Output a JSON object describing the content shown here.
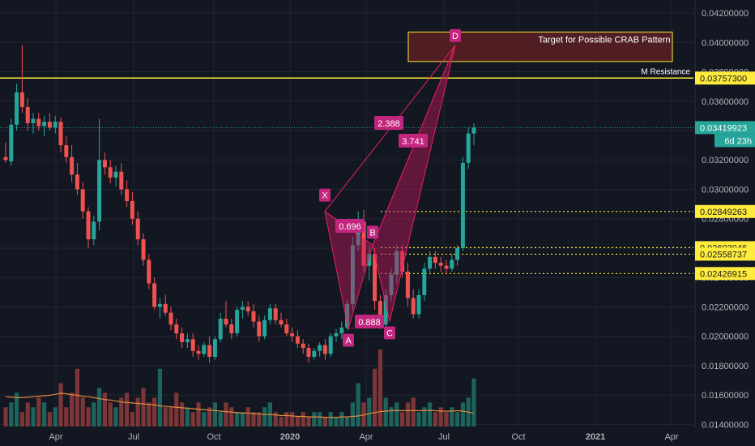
{
  "colors": {
    "background": "#131722",
    "grid": "#222631",
    "axis_text": "#b2b5be",
    "up": "#26a69a",
    "down": "#ef5350",
    "vol_up": "#1f6b63",
    "vol_down": "#8a3a3a",
    "ma": "#e08a3c",
    "resistance": "#ffeb3b",
    "pattern_fill": "#c2185b",
    "pattern_line": "#e91e63",
    "pattern_label": "#c2257d",
    "target_box": "#5a1f22",
    "current_price": "#26a69a"
  },
  "chart_data": {
    "type": "candlestick",
    "y_range": [
      0.0138,
      0.0425
    ],
    "y_ticks": [
      "0.04200000",
      "0.04000000",
      "0.03800000",
      "0.03600000",
      "0.03400000",
      "0.03200000",
      "0.03000000",
      "0.02800000",
      "0.02600000",
      "0.02400000",
      "0.02200000",
      "0.02000000",
      "0.01800000",
      "0.01600000",
      "0.01400000"
    ],
    "x_ticks": [
      "Apr",
      "Jul",
      "Oct",
      "2020",
      "Apr",
      "Jul",
      "Oct",
      "2021",
      "Apr"
    ],
    "price_labels": [
      {
        "text": "0.03757300",
        "value": 0.037573,
        "style": "yellow"
      },
      {
        "text": "0.03419923",
        "value": 0.03419923,
        "style": "current"
      },
      {
        "text": "0.02849263",
        "value": 0.02849263,
        "style": "yellow"
      },
      {
        "text": "0.02603046",
        "value": 0.02603046,
        "style": "yellow"
      },
      {
        "text": "0.02558737",
        "value": 0.02558737,
        "style": "yellow"
      },
      {
        "text": "0.02426915",
        "value": 0.02426915,
        "style": "yellow"
      }
    ],
    "countdown": "6d 23h",
    "resistance_label": "M Resistance",
    "target_label": "Target for Possible CRAB Pattern",
    "target_zone": [
      0.0387,
      0.0407
    ],
    "pattern_points": [
      {
        "label": "X",
        "value": 0.0285
      },
      {
        "label": "A",
        "value": 0.0205
      },
      {
        "label": "B",
        "value": 0.0262
      },
      {
        "label": "C",
        "value": 0.021
      },
      {
        "label": "D",
        "value": 0.0398
      }
    ],
    "ratios": [
      "0.696",
      "0.888",
      "2.388",
      "3.741"
    ],
    "candles": [
      [
        0.0322,
        0.0332,
        0.0318,
        0.032
      ],
      [
        0.0319,
        0.0348,
        0.0316,
        0.0344
      ],
      [
        0.0344,
        0.0372,
        0.034,
        0.0366
      ],
      [
        0.0366,
        0.0398,
        0.0352,
        0.0356
      ],
      [
        0.0356,
        0.0362,
        0.034,
        0.0345
      ],
      [
        0.0345,
        0.0352,
        0.0338,
        0.0348
      ],
      [
        0.0348,
        0.0352,
        0.034,
        0.0343
      ],
      [
        0.0343,
        0.035,
        0.0336,
        0.0346
      ],
      [
        0.0346,
        0.0352,
        0.034,
        0.0342
      ],
      [
        0.0342,
        0.035,
        0.0338,
        0.0346
      ],
      [
        0.0346,
        0.0349,
        0.0325,
        0.033
      ],
      [
        0.033,
        0.0336,
        0.0318,
        0.0322
      ],
      [
        0.0322,
        0.033,
        0.0305,
        0.031
      ],
      [
        0.031,
        0.0318,
        0.0296,
        0.03
      ],
      [
        0.03,
        0.0305,
        0.028,
        0.0285
      ],
      [
        0.0285,
        0.0288,
        0.026,
        0.0266
      ],
      [
        0.0266,
        0.0282,
        0.0262,
        0.0278
      ],
      [
        0.0278,
        0.0348,
        0.0272,
        0.032
      ],
      [
        0.032,
        0.0325,
        0.031,
        0.0315
      ],
      [
        0.0315,
        0.032,
        0.0304,
        0.0308
      ],
      [
        0.0308,
        0.0316,
        0.0302,
        0.0312
      ],
      [
        0.0312,
        0.0318,
        0.0296,
        0.03
      ],
      [
        0.03,
        0.0306,
        0.0288,
        0.0292
      ],
      [
        0.0292,
        0.0298,
        0.0276,
        0.028
      ],
      [
        0.028,
        0.0285,
        0.0262,
        0.0266
      ],
      [
        0.0266,
        0.027,
        0.0248,
        0.0252
      ],
      [
        0.0252,
        0.0256,
        0.0232,
        0.0236
      ],
      [
        0.0236,
        0.024,
        0.0218,
        0.022
      ],
      [
        0.022,
        0.0226,
        0.0212,
        0.0222
      ],
      [
        0.0222,
        0.0228,
        0.0214,
        0.0216
      ],
      [
        0.0216,
        0.022,
        0.0204,
        0.0208
      ],
      [
        0.0208,
        0.0212,
        0.0198,
        0.0202
      ],
      [
        0.0202,
        0.0206,
        0.0192,
        0.0196
      ],
      [
        0.0196,
        0.0202,
        0.0192,
        0.0198
      ],
      [
        0.0198,
        0.0202,
        0.0186,
        0.019
      ],
      [
        0.019,
        0.0194,
        0.0184,
        0.0188
      ],
      [
        0.0188,
        0.0196,
        0.0186,
        0.0194
      ],
      [
        0.0194,
        0.02,
        0.0182,
        0.0186
      ],
      [
        0.0186,
        0.02,
        0.0184,
        0.0198
      ],
      [
        0.0198,
        0.0216,
        0.0196,
        0.0212
      ],
      [
        0.0212,
        0.0224,
        0.0206,
        0.0208
      ],
      [
        0.0208,
        0.0212,
        0.0198,
        0.0202
      ],
      [
        0.0202,
        0.022,
        0.02,
        0.0218
      ],
      [
        0.0218,
        0.0224,
        0.0212,
        0.022
      ],
      [
        0.022,
        0.0224,
        0.0214,
        0.0217
      ],
      [
        0.0217,
        0.0222,
        0.0206,
        0.021
      ],
      [
        0.021,
        0.0214,
        0.0196,
        0.02
      ],
      [
        0.02,
        0.0214,
        0.0198,
        0.0211
      ],
      [
        0.0211,
        0.0222,
        0.0208,
        0.0219
      ],
      [
        0.0219,
        0.0222,
        0.0208,
        0.0211
      ],
      [
        0.0211,
        0.0216,
        0.0206,
        0.0208
      ],
      [
        0.0208,
        0.0212,
        0.02,
        0.0202
      ],
      [
        0.0202,
        0.0206,
        0.0196,
        0.02
      ],
      [
        0.02,
        0.0204,
        0.0192,
        0.0195
      ],
      [
        0.0195,
        0.0198,
        0.0188,
        0.0192
      ],
      [
        0.0192,
        0.0195,
        0.0182,
        0.0186
      ],
      [
        0.0186,
        0.0192,
        0.0184,
        0.019
      ],
      [
        0.019,
        0.0196,
        0.0186,
        0.0194
      ],
      [
        0.0194,
        0.0198,
        0.0184,
        0.0188
      ],
      [
        0.0188,
        0.0202,
        0.0186,
        0.02
      ],
      [
        0.02,
        0.0205,
        0.0196,
        0.0202
      ],
      [
        0.0202,
        0.021,
        0.0198,
        0.0206
      ],
      [
        0.0206,
        0.0225,
        0.0204,
        0.0222
      ],
      [
        0.0222,
        0.0268,
        0.0218,
        0.0262
      ],
      [
        0.0262,
        0.0285,
        0.0258,
        0.0278
      ],
      [
        0.0278,
        0.0286,
        0.0244,
        0.0248
      ],
      [
        0.0248,
        0.0262,
        0.0238,
        0.0256
      ],
      [
        0.0256,
        0.026,
        0.0218,
        0.0224
      ],
      [
        0.0224,
        0.0228,
        0.0205,
        0.0208
      ],
      [
        0.0208,
        0.0232,
        0.0206,
        0.0228
      ],
      [
        0.0228,
        0.0246,
        0.0224,
        0.0242
      ],
      [
        0.0242,
        0.0262,
        0.0236,
        0.0258
      ],
      [
        0.0258,
        0.0262,
        0.024,
        0.0244
      ],
      [
        0.0244,
        0.025,
        0.022,
        0.0226
      ],
      [
        0.0226,
        0.0232,
        0.0212,
        0.0215
      ],
      [
        0.0215,
        0.0232,
        0.0212,
        0.0228
      ],
      [
        0.0228,
        0.025,
        0.0224,
        0.0246
      ],
      [
        0.0246,
        0.0258,
        0.0242,
        0.0254
      ],
      [
        0.0254,
        0.0258,
        0.0246,
        0.025
      ],
      [
        0.025,
        0.0254,
        0.0244,
        0.0248
      ],
      [
        0.0248,
        0.0252,
        0.0242,
        0.0246
      ],
      [
        0.0246,
        0.0256,
        0.0244,
        0.0252
      ],
      [
        0.0252,
        0.0262,
        0.0248,
        0.026
      ],
      [
        0.026,
        0.0322,
        0.0258,
        0.0318
      ],
      [
        0.0318,
        0.0342,
        0.0314,
        0.0338
      ],
      [
        0.0338,
        0.0345,
        0.033,
        0.0342
      ]
    ],
    "volume": [
      4,
      5,
      7,
      3,
      5,
      4,
      6,
      5,
      3,
      4,
      9,
      4,
      7,
      12,
      6,
      4,
      5,
      8,
      7,
      5,
      4,
      6,
      7,
      3,
      6,
      8,
      5,
      6,
      12,
      4,
      4,
      7,
      5,
      4,
      3,
      5,
      3,
      4,
      5,
      3,
      5,
      4,
      3,
      3,
      4,
      3,
      3,
      4,
      5,
      3,
      2,
      3,
      3,
      2,
      3,
      2,
      3,
      3,
      2,
      3,
      2,
      3,
      2,
      5,
      9,
      5,
      6,
      12,
      16,
      6,
      4,
      5,
      3,
      5,
      6,
      3,
      4,
      5,
      3,
      4,
      3,
      4,
      3,
      5,
      6,
      10
    ],
    "ma": [
      6.2,
      6.1,
      6.0,
      6.0,
      6.1,
      6.2,
      6.3,
      6.4,
      6.5,
      6.7,
      6.9,
      6.8,
      6.6,
      6.5,
      6.3,
      6.2,
      6.0,
      5.8,
      5.6,
      5.5,
      5.3,
      5.1,
      5.0,
      4.9,
      4.8,
      4.7,
      4.6,
      4.5,
      4.3,
      4.2,
      4.1,
      4.0,
      3.9,
      3.8,
      3.7,
      3.6,
      3.5,
      3.4,
      3.3,
      3.2,
      3.1,
      3.0,
      2.9,
      2.8,
      2.8,
      2.7,
      2.6,
      2.5,
      2.5,
      2.4,
      2.3,
      2.3,
      2.2,
      2.1,
      2.1,
      2.0,
      2.0,
      2.0,
      1.9,
      1.9,
      1.9,
      2.0,
      2.0,
      2.1,
      2.2,
      2.4,
      2.7,
      2.9,
      3.1,
      3.2,
      3.3,
      3.3,
      3.3,
      3.3,
      3.3,
      3.3,
      3.3,
      3.3,
      3.3,
      3.2,
      3.2,
      3.2,
      3.3,
      3.2,
      3.0,
      2.7
    ],
    "vol_max": 16
  }
}
